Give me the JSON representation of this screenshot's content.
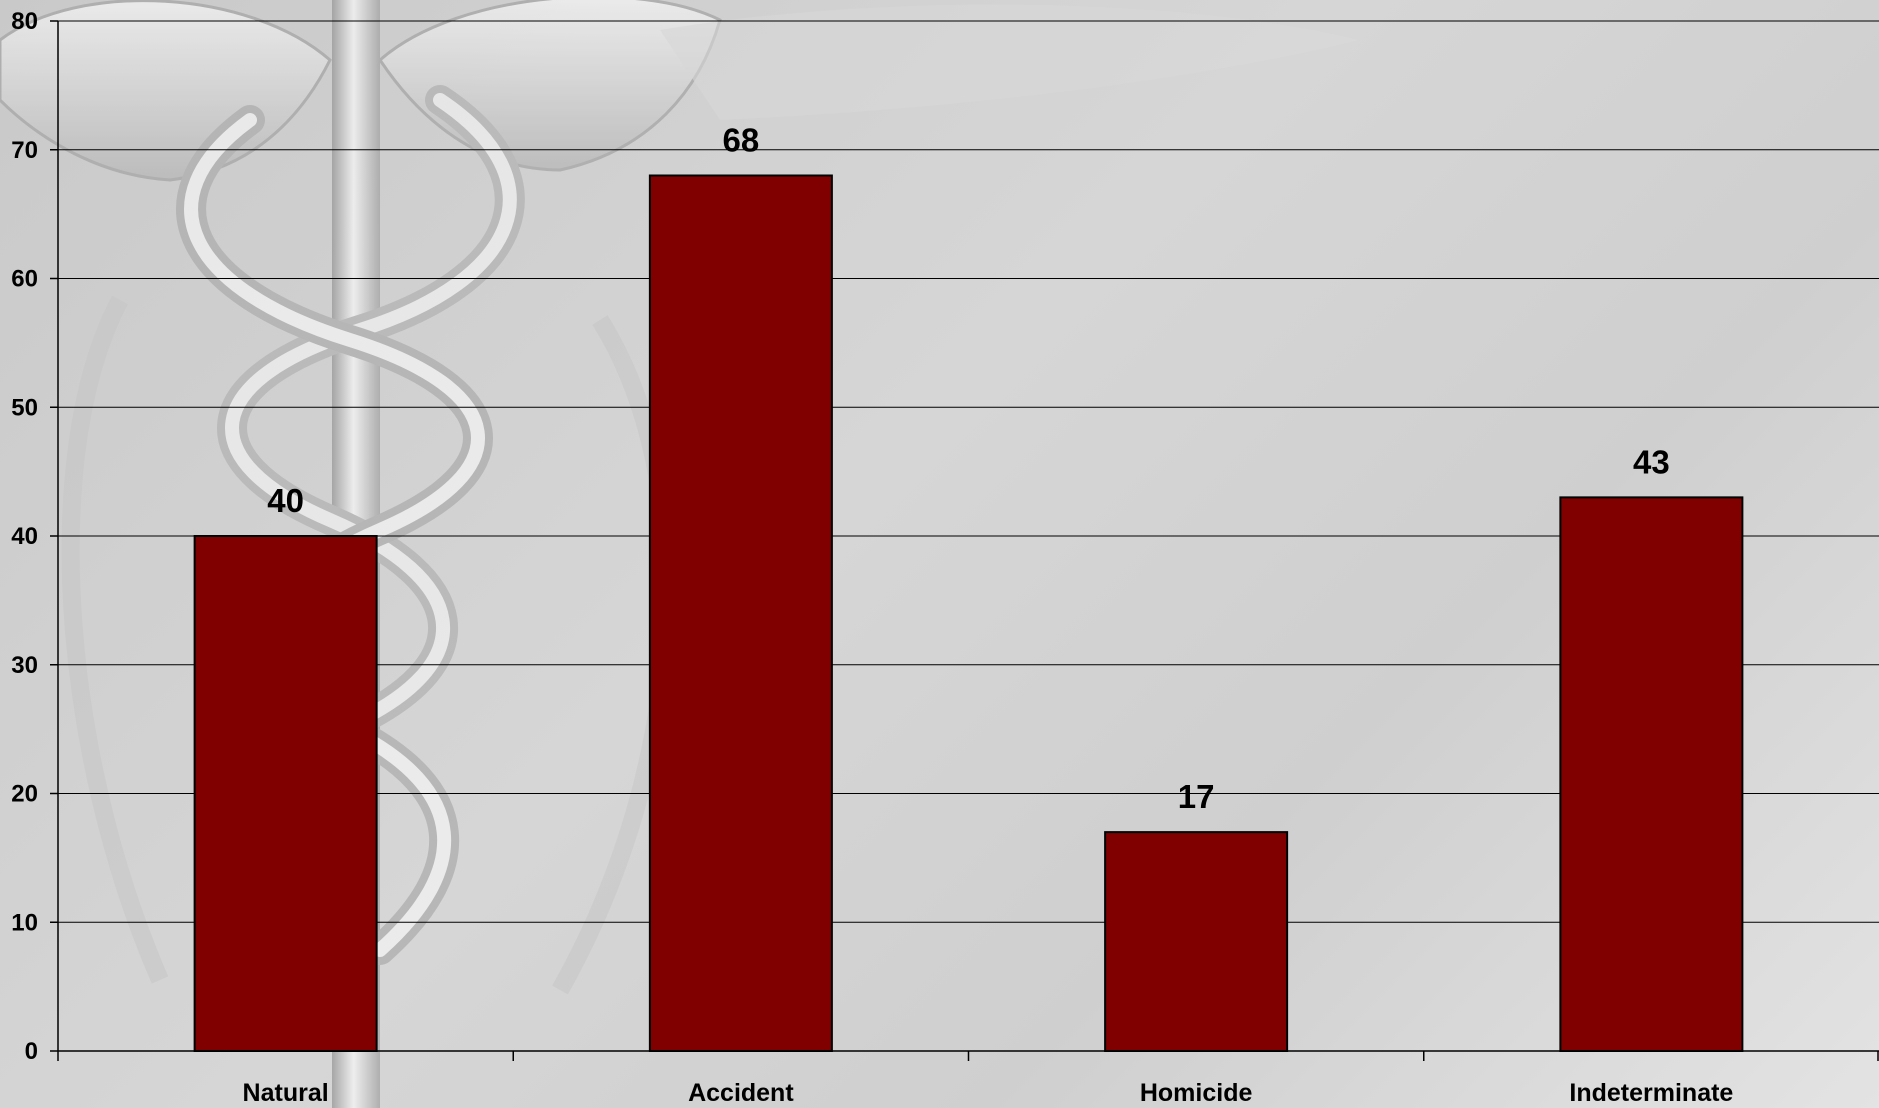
{
  "chart_data": {
    "type": "bar",
    "categories": [
      "Natural",
      "Accident",
      "Homicide",
      "Indeterminate"
    ],
    "values": [
      40,
      68,
      17,
      43
    ],
    "data_labels": [
      "40",
      "68",
      "17",
      "43"
    ],
    "title": "",
    "xlabel": "",
    "ylabel": "",
    "ylim": [
      0,
      80
    ],
    "yticks": [
      0,
      10,
      20,
      30,
      40,
      50,
      60,
      70,
      80
    ],
    "grid": true,
    "legend": "none",
    "bar_color": "#800000",
    "bar_outline_color": "#000000",
    "background_motif": "caduceus-watermark"
  }
}
